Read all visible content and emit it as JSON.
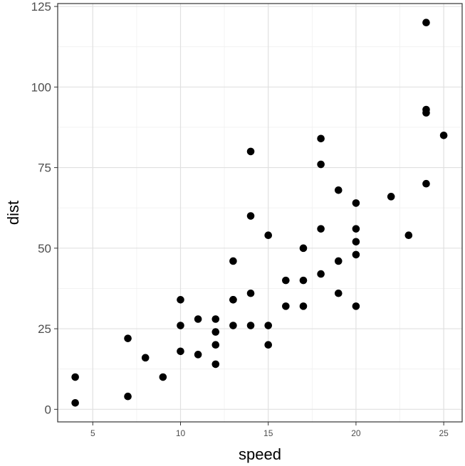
{
  "chart_data": {
    "type": "scatter",
    "xlabel": "speed",
    "ylabel": "dist",
    "xlim": [
      3.0,
      26.05
    ],
    "ylim": [
      -3.9,
      125.9
    ],
    "x_ticks": [
      5,
      10,
      15,
      20,
      25
    ],
    "y_ticks": [
      0,
      25,
      50,
      75,
      100,
      125
    ],
    "x_tick_labels": [
      "5",
      "10",
      "15",
      "20",
      "25"
    ],
    "y_tick_labels": [
      "0",
      "25",
      "50",
      "75",
      "100",
      "125"
    ],
    "grid": true,
    "point_color": "#000000",
    "points": [
      [
        4,
        2
      ],
      [
        4,
        10
      ],
      [
        7,
        4
      ],
      [
        7,
        22
      ],
      [
        8,
        16
      ],
      [
        9,
        10
      ],
      [
        10,
        18
      ],
      [
        10,
        26
      ],
      [
        10,
        34
      ],
      [
        11,
        17
      ],
      [
        11,
        28
      ],
      [
        12,
        14
      ],
      [
        12,
        20
      ],
      [
        12,
        24
      ],
      [
        12,
        28
      ],
      [
        13,
        26
      ],
      [
        13,
        34
      ],
      [
        13,
        34
      ],
      [
        13,
        46
      ],
      [
        14,
        26
      ],
      [
        14,
        36
      ],
      [
        14,
        60
      ],
      [
        14,
        80
      ],
      [
        15,
        20
      ],
      [
        15,
        26
      ],
      [
        15,
        54
      ],
      [
        16,
        32
      ],
      [
        16,
        40
      ],
      [
        17,
        32
      ],
      [
        17,
        40
      ],
      [
        17,
        50
      ],
      [
        18,
        42
      ],
      [
        18,
        56
      ],
      [
        18,
        76
      ],
      [
        18,
        84
      ],
      [
        19,
        36
      ],
      [
        19,
        46
      ],
      [
        19,
        68
      ],
      [
        20,
        32
      ],
      [
        20,
        48
      ],
      [
        20,
        52
      ],
      [
        20,
        56
      ],
      [
        20,
        64
      ],
      [
        22,
        66
      ],
      [
        23,
        54
      ],
      [
        24,
        70
      ],
      [
        24,
        92
      ],
      [
        24,
        93
      ],
      [
        24,
        120
      ],
      [
        25,
        85
      ]
    ]
  }
}
